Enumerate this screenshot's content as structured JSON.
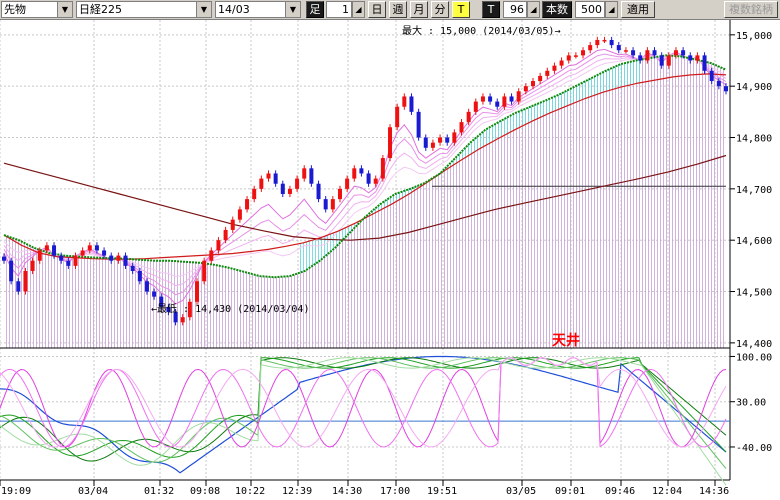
{
  "toolbar": {
    "type_select": "先物",
    "symbol_select": "日経225",
    "contract_select": "14/03",
    "ashi_label": "足",
    "interval_value": "1",
    "period_buttons": [
      "日",
      "週",
      "月",
      "分",
      "T"
    ],
    "t_label": "T",
    "tick_value": "96",
    "honsu_label": "本数",
    "count_value": "500",
    "apply_label": "適用",
    "multi_label": "複数銘柄"
  },
  "chart_data": {
    "type": "line",
    "price_panel": {
      "y_ticks": [
        "15,000",
        "14,900",
        "14,800",
        "14,700",
        "14,600",
        "14,500",
        "14,400"
      ],
      "ylim": [
        14390,
        15025
      ],
      "max_annotation": "最大 : 15,000 (2014/03/05)→",
      "min_annotation": "←最低 : 14,430 (2014/03/04)",
      "max_value": 15000,
      "min_value": 14430,
      "candle_closes": [
        14560,
        14520,
        14500,
        14540,
        14560,
        14580,
        14590,
        14570,
        14560,
        14550,
        14570,
        14580,
        14590,
        14580,
        14570,
        14560,
        14570,
        14550,
        14540,
        14520,
        14500,
        14490,
        14470,
        14460,
        14440,
        14450,
        14480,
        14520,
        14560,
        14580,
        14600,
        14620,
        14640,
        14660,
        14680,
        14700,
        14720,
        14730,
        14710,
        14690,
        14700,
        14720,
        14740,
        14710,
        14680,
        14660,
        14680,
        14700,
        14720,
        14740,
        14730,
        14710,
        14720,
        14760,
        14820,
        14860,
        14880,
        14850,
        14800,
        14780,
        14790,
        14800,
        14790,
        14810,
        14830,
        14850,
        14870,
        14880,
        14870,
        14860,
        14880,
        14870,
        14890,
        14900,
        14910,
        14920,
        14930,
        14940,
        14950,
        14960,
        14960,
        14970,
        14980,
        14990,
        14990,
        14980,
        14970,
        14970,
        14960,
        14950,
        14970,
        14960,
        14940,
        14960,
        14970,
        14960,
        14950,
        14960,
        14930,
        14910,
        14900,
        14890
      ],
      "ma_green": [
        14610,
        14600,
        14585,
        14575,
        14570,
        14568,
        14566,
        14565,
        14564,
        14562,
        14560,
        14560,
        14558,
        14556,
        14552,
        14546,
        14538,
        14530,
        14528,
        14530,
        14540,
        14560,
        14585,
        14615,
        14645,
        14670,
        14690,
        14700,
        14712,
        14730,
        14760,
        14790,
        14815,
        14832,
        14848,
        14860,
        14872,
        14885,
        14900,
        14915,
        14930,
        14943,
        14950,
        14955,
        14960,
        14958,
        14952,
        14945,
        14932
      ],
      "ma_red": [
        14610,
        14590,
        14575,
        14568,
        14566,
        14564,
        14563,
        14563,
        14564,
        14566,
        14568,
        14570,
        14572,
        14574,
        14578,
        14582,
        14588,
        14595,
        14605,
        14618,
        14634,
        14652,
        14670,
        14690,
        14712,
        14735,
        14757,
        14778,
        14797,
        14815,
        14832,
        14848,
        14862,
        14876,
        14888,
        14898,
        14906,
        14912,
        14918,
        14922,
        14924,
        14922
      ],
      "ma_darkred": [
        14750,
        14735,
        14720,
        14705,
        14690,
        14675,
        14660,
        14645,
        14630,
        14618,
        14607,
        14602,
        14600,
        14604,
        14615,
        14630,
        14645,
        14660,
        14672,
        14684,
        14696,
        14708,
        14720,
        14733,
        14748,
        14765
      ],
      "ref_line_value": 14705
    },
    "oscillator_panel": {
      "y_ticks": [
        "100.00",
        "30.00",
        "-40.00"
      ],
      "ylim": [
        -88,
        110
      ],
      "annotation": "天井"
    },
    "x_labels": [
      "19:09",
      "03/04",
      "01:32",
      "09:08",
      "10:22",
      "12:39",
      "14:30",
      "17:00",
      "19:51",
      "03/05",
      "09:01",
      "09:46",
      "12:04",
      "14:36"
    ],
    "colors": {
      "up": "#ee1111",
      "down": "#1a1ad0",
      "ma_green": "#0b8a0b",
      "ma_red": "#d11a1a",
      "ma_darkred": "#7a1212",
      "fill_cyan": "#8ee8ee",
      "fill_pink": "#e8c8e8",
      "osc_blue": "#1f4fd8",
      "osc_magenta": "#e040e0",
      "osc_green": "#20a020",
      "annotation_red": "#ff0000"
    }
  }
}
